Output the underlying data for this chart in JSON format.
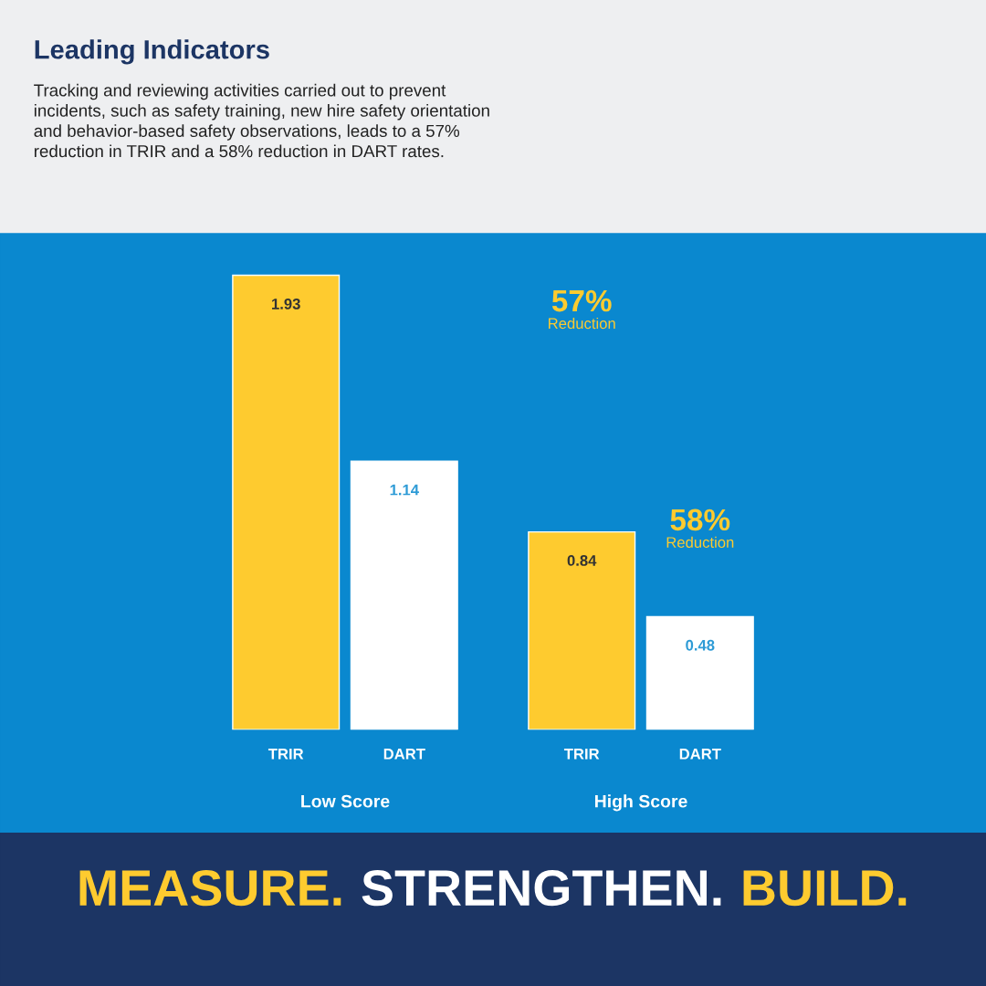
{
  "chart_data": {
    "type": "bar",
    "title": "Leading Indicators",
    "subtitle": "Tracking and reviewing activities carried out to prevent\nincidents, such as safety training, new hire safety orientation\nand behavior-based safety observations, leads to a 57%\nreduction in TRIR and a 58% reduction in DART rates.",
    "categories": [
      "Low Score",
      "High Score"
    ],
    "series": [
      {
        "name": "TRIR",
        "color": "#fecb2f",
        "values": [
          1.93,
          0.84
        ]
      },
      {
        "name": "DART",
        "color": "#ffffff",
        "values": [
          1.14,
          0.48
        ]
      }
    ],
    "data_labels": true,
    "annotations": [
      "57%\nReduction",
      "58%\nReduction",
      "MEASURE. STRENGTHEN. BUILD."
    ]
  }
}
